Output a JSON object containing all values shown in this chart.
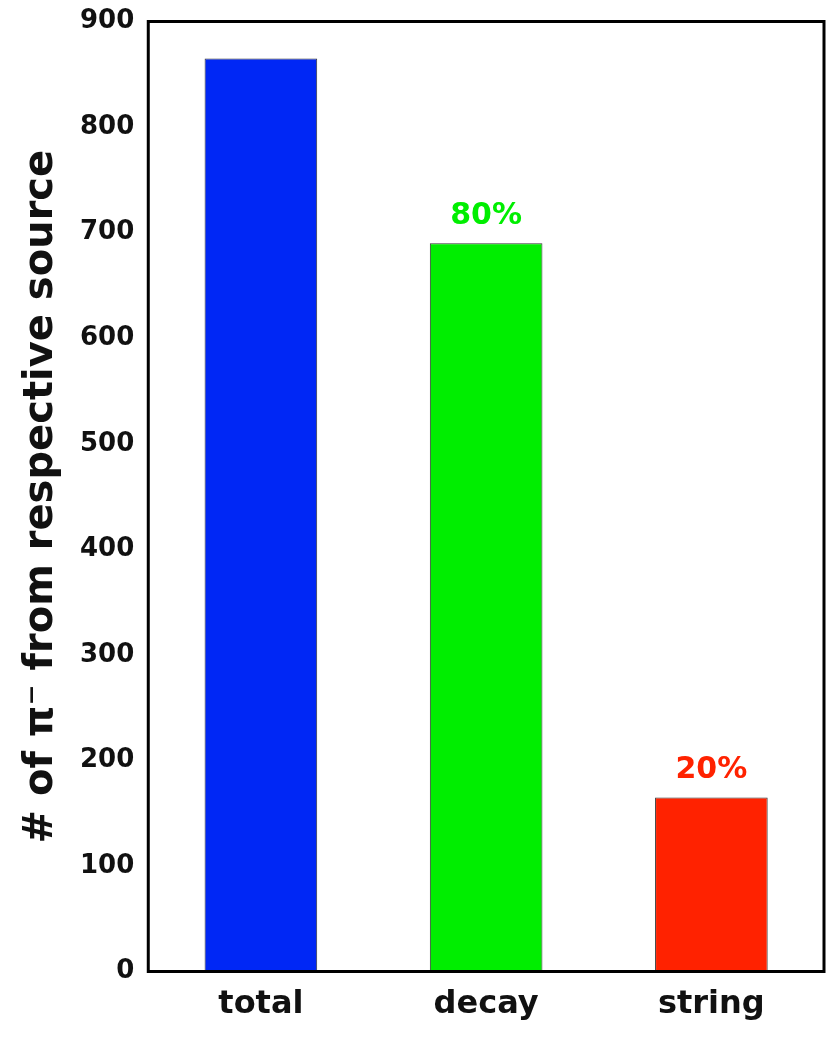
{
  "chart_data": {
    "type": "bar",
    "ylabel": "# of π⁻ from respective source",
    "categories": [
      "total",
      "decay",
      "string"
    ],
    "values": [
      865,
      690,
      165
    ],
    "colors": [
      "#0027f5",
      "#00ee00",
      "#ff2200"
    ],
    "annotations": [
      {
        "text": "80%",
        "x": "decay",
        "y": 690
      },
      {
        "text": "20%",
        "x": "string",
        "y": 165
      }
    ],
    "ylim": [
      0,
      900
    ],
    "yticks": [
      0,
      100,
      200,
      300,
      400,
      500,
      600,
      700,
      800,
      900
    ],
    "grid": false
  }
}
